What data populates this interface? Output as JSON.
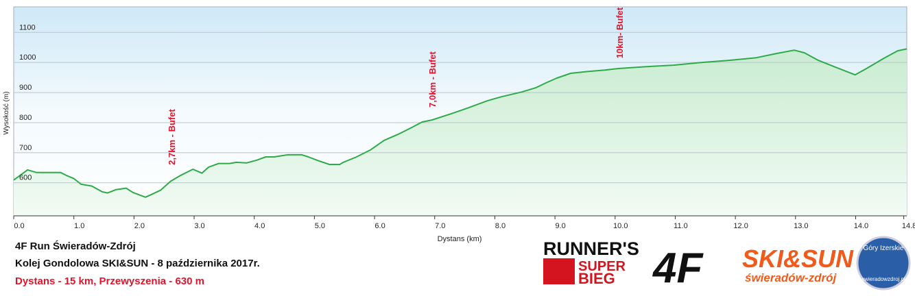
{
  "chart_data": {
    "type": "line",
    "annotations": [
      "2,7km - Bufet",
      "7,0km - Bufet",
      "10km- Bufet"
    ],
    "xlabel": "Dystans  (km)",
    "ylabel": "Wysokość (m)",
    "x": [
      0,
      0.23,
      0.38,
      0.49,
      0.78,
      0.89,
      1.0,
      1.12,
      1.3,
      1.47,
      1.56,
      1.7,
      1.87,
      1.98,
      2.19,
      2.27,
      2.44,
      2.61,
      2.78,
      2.98,
      3.13,
      3.24,
      3.41,
      3.59,
      3.7,
      3.87,
      4.04,
      4.19,
      4.33,
      4.56,
      4.79,
      4.9,
      5.07,
      5.25,
      5.42,
      5.48,
      5.7,
      5.93,
      6.16,
      6.39,
      6.62,
      6.79,
      6.96,
      7.31,
      7.54,
      7.88,
      8.11,
      8.45,
      8.68,
      8.85,
      9.03,
      9.26,
      9.54,
      9.83,
      10.06,
      10.52,
      10.97,
      11.43,
      11.89,
      12.35,
      12.69,
      12.98,
      13.15,
      13.38,
      13.67,
      13.99,
      14.18,
      14.47,
      14.7,
      14.85
    ],
    "series": [
      {
        "color": "#2eaa48",
        "values": [
          609,
          643,
          634,
          634,
          634,
          623,
          614,
          595,
          589,
          570,
          566,
          577,
          582,
          568,
          552,
          559,
          575,
          605,
          625,
          645,
          632,
          652,
          664,
          664,
          668,
          666,
          675,
          686,
          686,
          693,
          693,
          686,
          673,
          661,
          661,
          668,
          686,
          709,
          741,
          761,
          784,
          802,
          809,
          832,
          848,
          873,
          886,
          902,
          916,
          932,
          948,
          964,
          970,
          975,
          980,
          986,
          991,
          1000,
          1007,
          1016,
          1030,
          1041,
          1032,
          1007,
          984,
          959,
          980,
          1014,
          1039,
          1045
        ]
      }
    ],
    "xlim": [
      0,
      14.85
    ],
    "ylim": [
      490,
      1185
    ],
    "xticks": [
      {
        "value": 0,
        "label": "0.0"
      },
      {
        "value": 1,
        "label": "1.0"
      },
      {
        "value": 2,
        "label": "2.0"
      },
      {
        "value": 3,
        "label": "3.0"
      },
      {
        "value": 4,
        "label": "4.0"
      },
      {
        "value": 5,
        "label": "5.0"
      },
      {
        "value": 6,
        "label": "6.0"
      },
      {
        "value": 7,
        "label": "7.0"
      },
      {
        "value": 8,
        "label": "8.0"
      },
      {
        "value": 9,
        "label": "9.0"
      },
      {
        "value": 10,
        "label": "10.0"
      },
      {
        "value": 11,
        "label": "11.0"
      },
      {
        "value": 12,
        "label": "12.0"
      },
      {
        "value": 13,
        "label": "13.0"
      },
      {
        "value": 14,
        "label": "14.0"
      },
      14.8
    ],
    "yticks": [
      600,
      700,
      800,
      900,
      1000,
      1100
    ],
    "grid": true
  },
  "footer": {
    "line1": "4F Run Świeradów-Zdrój",
    "line2": "Kolej Gondolowa SKI&SUN -  8 października 2017r.",
    "line3": "Dystans - 15 km, Przewyszenia - 630 m"
  },
  "logos": {
    "runners": "RUNNER'S",
    "super": "SUPER",
    "bieg": "BIEG",
    "fourf": "4F",
    "skisun": "SKI&SUN",
    "swieradow": "świeradów-zdrój",
    "gory": "Góry Izerskie",
    "site": "swieradowzdroj.pl"
  }
}
